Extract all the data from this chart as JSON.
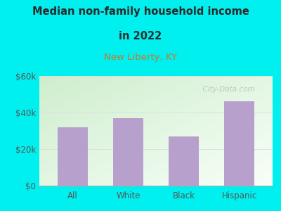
{
  "title_line1": "Median non-family household income",
  "title_line2": "in 2022",
  "subtitle": "New Liberty, KY",
  "categories": [
    "All",
    "White",
    "Black",
    "Hispanic"
  ],
  "values": [
    32000,
    37000,
    27000,
    46000
  ],
  "bar_color": "#b8a0cc",
  "ylim": [
    0,
    60000
  ],
  "yticks": [
    0,
    20000,
    40000,
    60000
  ],
  "ytick_labels": [
    "$0",
    "$20k",
    "$40k",
    "$60k"
  ],
  "outer_bg_color": "#00EFEF",
  "plot_bg_topleft": "#ceeece",
  "plot_bg_bottomright": "#f8fff8",
  "title_color": "#2a2a2a",
  "subtitle_color": "#cc7722",
  "tick_color": "#555555",
  "grid_color": "#dddddd",
  "watermark_text": "  City-Data.com",
  "watermark_color": "#bbbbbb"
}
